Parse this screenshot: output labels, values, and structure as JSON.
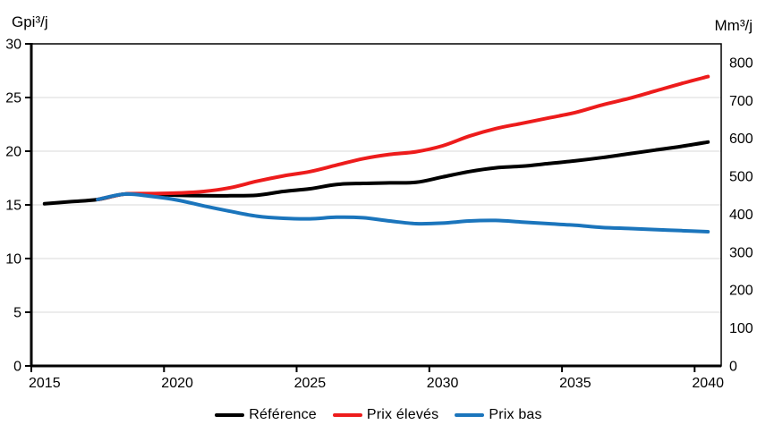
{
  "chart_data": {
    "type": "line",
    "title": "",
    "grid": "horizontal",
    "legend_position": "bottom",
    "x": [
      2015,
      2016,
      2017,
      2018,
      2019,
      2020,
      2021,
      2022,
      2023,
      2024,
      2025,
      2026,
      2027,
      2028,
      2029,
      2030,
      2031,
      2032,
      2033,
      2034,
      2035,
      2036,
      2037,
      2038,
      2039,
      2040
    ],
    "x_ticks": [
      2015,
      2020,
      2025,
      2030,
      2035,
      2040
    ],
    "left_axis": {
      "label": "Gpi³/j",
      "min": 0,
      "max": 30,
      "ticks": [
        0,
        5,
        10,
        15,
        20,
        25,
        30
      ]
    },
    "right_axis": {
      "label": "Mm³/j",
      "min": 0,
      "max": 800,
      "ticks": [
        0,
        100,
        200,
        300,
        400,
        500,
        600,
        700,
        800
      ],
      "mm3_per_gpi3": 28.3168
    },
    "series": [
      {
        "name": "Référence",
        "color": "#000000",
        "values": [
          15.1,
          15.3,
          15.5,
          16.0,
          16.0,
          15.9,
          15.85,
          15.85,
          15.9,
          16.25,
          16.5,
          16.9,
          17.0,
          17.05,
          17.1,
          17.6,
          18.1,
          18.45,
          18.6,
          18.85,
          19.1,
          19.4,
          19.75,
          20.1,
          20.45,
          20.85
        ]
      },
      {
        "name": "Prix élevés",
        "color": "#ed1c1c",
        "values": [
          null,
          null,
          15.5,
          16.0,
          16.05,
          16.1,
          16.25,
          16.6,
          17.2,
          17.7,
          18.1,
          18.7,
          19.3,
          19.7,
          19.95,
          20.5,
          21.4,
          22.1,
          22.6,
          23.1,
          23.6,
          24.3,
          24.9,
          25.6,
          26.3,
          26.95
        ]
      },
      {
        "name": "Prix bas",
        "color": "#1b75bc",
        "values": [
          null,
          null,
          15.5,
          16.0,
          15.8,
          15.45,
          14.9,
          14.4,
          13.95,
          13.75,
          13.7,
          13.85,
          13.8,
          13.5,
          13.25,
          13.3,
          13.5,
          13.55,
          13.4,
          13.25,
          13.1,
          12.9,
          12.8,
          12.7,
          12.6,
          12.5
        ]
      }
    ]
  }
}
